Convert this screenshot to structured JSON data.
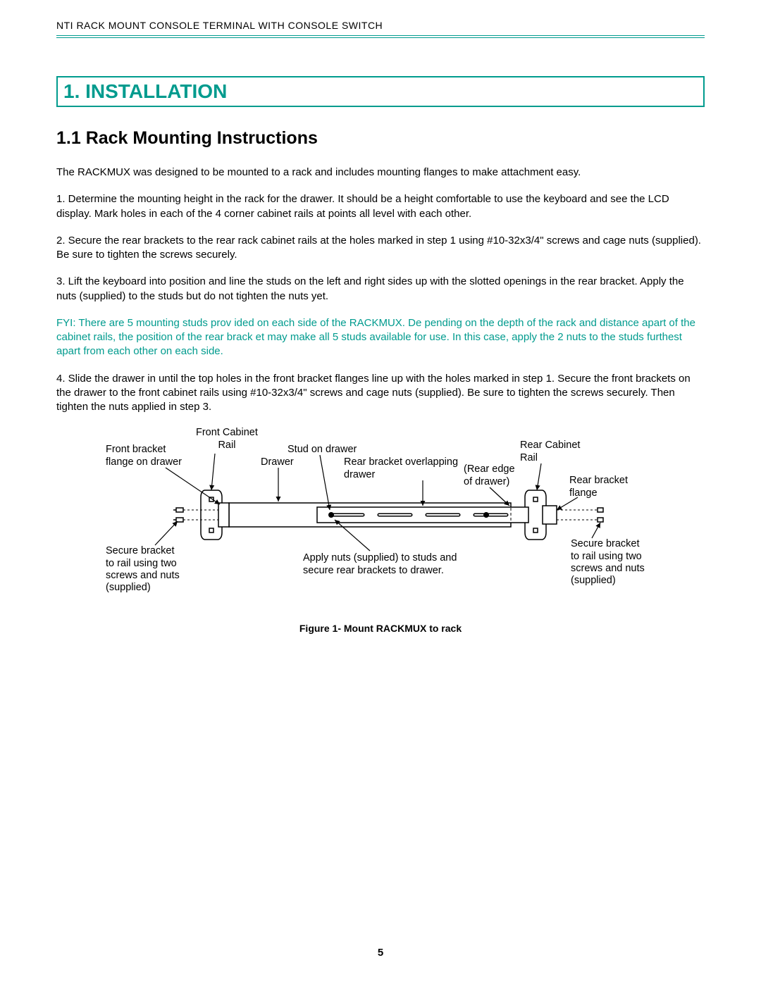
{
  "colors": {
    "accent": "#009b8e",
    "text": "#000000",
    "bg": "#ffffff"
  },
  "header": {
    "title": "NTI RACK MOUNT CONSOLE TERMINAL WITH CONSOLE SWITCH"
  },
  "section": {
    "number_title": "1. INSTALLATION"
  },
  "subsection": {
    "number_title": "1.1 Rack Mounting Instructions"
  },
  "paragraphs": {
    "intro": "The RACKMUX was designed to be mounted to a rack and includes mounting flanges to make attachment easy.",
    "step1": "1.   Determine the mounting height in the rack for the drawer.    It should be a height comfortable to use the keyboard and see the LCD display.  Mark holes in each of the 4 corner cabinet rails at points all level with each other.",
    "step2": "2.  Secure the rear brackets to the rear rack cabinet rails at the holes marked in step 1 using #10-32x3/4\" screws and cage nuts (supplied).   Be sure to tighten the screws securely.",
    "step3": "3. Lift the keyboard into position and line the studs on the left and right sides up with the slotted openings in the rear bracket.  Apply the nuts (supplied) to the studs but do not tighten the nuts yet.",
    "fyi": "FYI:  There are 5 mounting studs prov    ided on each side of the RACKMUX.  De    pending on the depth of the rack and distance apart of the cabinet rails, the position of the rear brack       et may make all 5 studs available for use.    In this case, apply the 2 nuts to the studs furthest apart from each other on each side.",
    "step4": "4.  Slide the drawer in until the top holes in the front bracket flanges line up with the holes marked in step 1.   Secure the front brackets on the drawer to the front cabinet rails using #10-32x3/4\" screws and cage nuts (supplied).   Be sure to tighten the screws securely.    Then tighten the nuts applied in step 3."
  },
  "diagram": {
    "labels": {
      "front_bracket_flange": "Front bracket\nflange on drawer",
      "front_cabinet_rail": "Front Cabinet\nRail",
      "drawer": "Drawer",
      "stud_on_drawer": "Stud on drawer",
      "rear_bracket_overlapping": "Rear bracket overlapping\ndrawer",
      "rear_edge": "(Rear edge\nof drawer)",
      "rear_cabinet_rail": "Rear Cabinet\nRail",
      "rear_bracket_flange": "Rear bracket\nflange",
      "secure_left": "Secure bracket\nto rail using two\n screws and nuts\n(supplied)",
      "apply_nuts": "Apply nuts (supplied) to studs and\nsecure rear brackets to drawer.",
      "secure_right": "Secure bracket\nto rail using two\n screws and nuts\n(supplied)"
    },
    "caption": "Figure 1- Mount RACKMUX to rack",
    "style": {
      "stroke": "#000000",
      "stroke_width": 1.4,
      "arrow_size": 6,
      "rail_width": 20,
      "drawer_height": 34
    }
  },
  "page_number": "5"
}
